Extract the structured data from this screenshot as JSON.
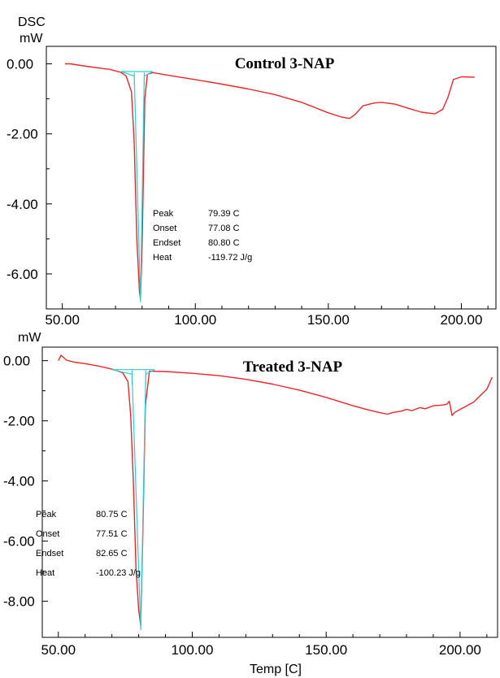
{
  "chart_data": [
    {
      "type": "line",
      "title": "Control 3-NAP",
      "ylabel_top": "DSC",
      "ylabel": "mW",
      "xlabel": "",
      "xlim": [
        44,
        213
      ],
      "ylim": [
        -7.0,
        0.5
      ],
      "xticks": [
        "50.00",
        "100.00",
        "150.00",
        "200.00"
      ],
      "yticks": [
        "0.00",
        "-2.00",
        "-4.00",
        "-6.00"
      ],
      "series": [
        {
          "color": "#e8262b",
          "x": [
            51,
            53,
            60,
            68,
            72,
            74,
            76,
            77,
            78,
            79,
            79.39,
            80,
            81,
            82,
            84,
            90,
            100,
            110,
            120,
            130,
            140,
            150,
            155,
            158,
            160,
            163,
            167,
            170,
            175,
            180,
            185,
            190,
            193,
            195,
            197,
            200,
            205
          ],
          "y": [
            0.0,
            0.0,
            -0.08,
            -0.16,
            -0.24,
            -0.35,
            -0.8,
            -2.2,
            -5.0,
            -6.5,
            -6.72,
            -5.2,
            -1.0,
            -0.3,
            -0.25,
            -0.33,
            -0.45,
            -0.58,
            -0.72,
            -0.88,
            -1.1,
            -1.4,
            -1.52,
            -1.56,
            -1.45,
            -1.2,
            -1.12,
            -1.1,
            -1.15,
            -1.27,
            -1.38,
            -1.43,
            -1.3,
            -0.95,
            -0.45,
            -0.37,
            -0.38
          ]
        },
        {
          "color": "#33cccc",
          "x": [
            72,
            84,
            null,
            72,
            77.08,
            79.39,
            80.8,
            84,
            null,
            77.08,
            77.08,
            null,
            80.8,
            80.8
          ],
          "y": [
            -0.22,
            -0.22,
            null,
            -0.22,
            -0.35,
            -6.8,
            -0.35,
            -0.22,
            null,
            -0.25,
            -0.6,
            null,
            -0.25,
            -0.6
          ]
        }
      ],
      "annotations": [
        {
          "label": "Peak",
          "value": "79.39 C"
        },
        {
          "label": "Onset",
          "value": "77.08 C"
        },
        {
          "label": "Endset",
          "value": "80.80 C"
        },
        {
          "label": "Heat",
          "value": "-119.72  J/g"
        }
      ]
    },
    {
      "type": "line",
      "title": "Treated 3-NAP",
      "ylabel": "mW",
      "xlabel": "Temp  [C]",
      "xlim": [
        44,
        214
      ],
      "ylim": [
        -9.2,
        0.45
      ],
      "xticks": [
        "50.00",
        "100.00",
        "150.00",
        "200.00"
      ],
      "yticks": [
        "0.00",
        "-2.00",
        "-4.00",
        "-6.00",
        "-8.00"
      ],
      "series": [
        {
          "color": "#e8262b",
          "x": [
            50,
            51,
            53,
            56,
            60,
            65,
            70,
            74,
            76,
            77,
            78,
            79,
            80,
            80.75,
            81.5,
            82.5,
            84,
            90,
            100,
            110,
            120,
            130,
            140,
            150,
            160,
            165,
            170,
            173,
            175,
            178,
            180,
            182,
            185,
            187,
            190,
            193,
            195,
            196,
            197,
            198,
            200,
            205,
            210,
            212
          ],
          "y": [
            0.0,
            0.18,
            0.02,
            -0.05,
            -0.1,
            -0.18,
            -0.28,
            -0.4,
            -0.7,
            -1.8,
            -4.0,
            -6.9,
            -8.3,
            -8.8,
            -6.0,
            -1.5,
            -0.35,
            -0.36,
            -0.42,
            -0.5,
            -0.62,
            -0.78,
            -0.98,
            -1.22,
            -1.5,
            -1.62,
            -1.73,
            -1.78,
            -1.72,
            -1.68,
            -1.62,
            -1.66,
            -1.56,
            -1.6,
            -1.5,
            -1.48,
            -1.45,
            -1.35,
            -1.82,
            -1.72,
            -1.62,
            -1.38,
            -0.95,
            -0.55
          ]
        },
        {
          "color": "#33cccc",
          "x": [
            70,
            86,
            null,
            70,
            77.51,
            80.75,
            82.65,
            86,
            null,
            77.51,
            77.51,
            null,
            82.65,
            82.65
          ],
          "y": [
            -0.3,
            -0.3,
            null,
            -0.3,
            -0.45,
            -8.95,
            -0.45,
            -0.3,
            null,
            -0.32,
            -0.8,
            null,
            -0.32,
            -0.8
          ]
        }
      ],
      "annotations": [
        {
          "label": "Peak",
          "value": "80.75 C"
        },
        {
          "label": "Onset",
          "value": "77.51 C"
        },
        {
          "label": "Endset",
          "value": "82.65 C"
        },
        {
          "label": "Heat",
          "value": "-100.23 J/g"
        }
      ]
    }
  ]
}
